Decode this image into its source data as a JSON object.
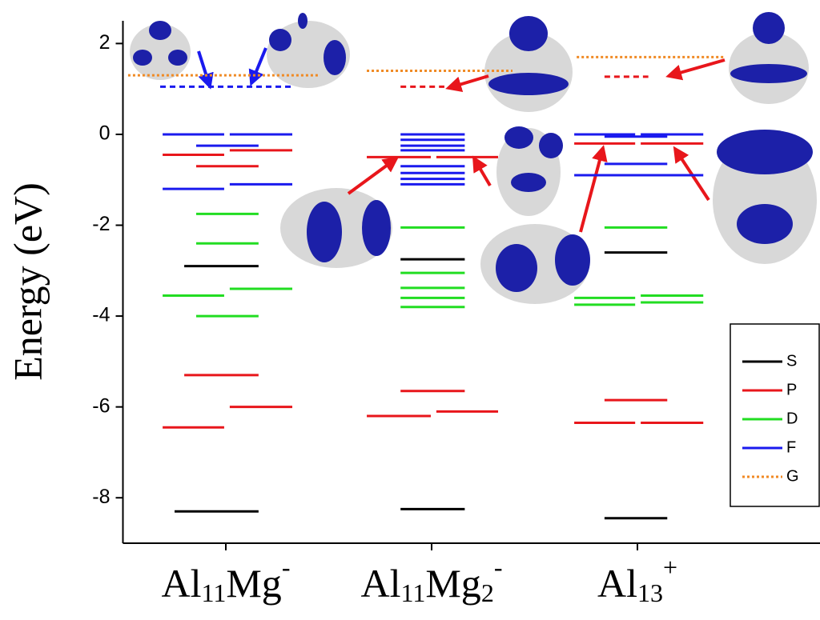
{
  "chart_data": {
    "type": "energy-levels",
    "y_label": "Energy (eV)",
    "ylim": [
      -9,
      2.5
    ],
    "yticks": [
      -8,
      -6,
      -4,
      -2,
      0,
      2
    ],
    "xlim": [
      0,
      3.4
    ],
    "xticks": [
      {
        "value": 0.5,
        "label": [
          {
            "text": "Al"
          },
          {
            "text": "11",
            "shift": "sub"
          },
          {
            "text": "Mg"
          },
          {
            "text": "-",
            "shift": "super"
          }
        ]
      },
      {
        "value": 1.5,
        "label": [
          {
            "text": "Al"
          },
          {
            "text": "11",
            "shift": "sub"
          },
          {
            "text": "Mg"
          },
          {
            "text": "2",
            "shift": "sub"
          },
          {
            "text": "-",
            "shift": "super"
          }
        ]
      },
      {
        "value": 2.5,
        "label": [
          {
            "text": "Al"
          },
          {
            "text": "13",
            "shift": "sub"
          },
          {
            "text": "+",
            "shift": "super"
          }
        ]
      }
    ],
    "legend_position": "lower right",
    "series": [
      {
        "name": "S",
        "color": "#000000",
        "style": "solid",
        "values": [
          -8.3,
          -2.9,
          -8.25,
          -2.75,
          -8.45,
          -2.6
        ],
        "x": [
          0.251,
          0.298,
          1.349,
          1.349,
          2.34,
          2.34
        ],
        "x2": [
          0.659,
          0.659,
          1.661,
          1.661,
          2.645,
          2.645
        ],
        "dashed": [
          false,
          false,
          false,
          false,
          false,
          false
        ]
      },
      {
        "name": "P",
        "color": "#e8161b",
        "style": "solid",
        "values": [
          -6.45,
          -6.0,
          -5.3,
          -0.45,
          -0.35,
          -0.7,
          -6.2,
          -6.1,
          -5.65,
          -0.5,
          -0.5,
          1.05,
          -6.35,
          -6.35,
          -5.85,
          -0.2,
          -0.2,
          1.27
        ],
        "x": [
          0.193,
          0.519,
          0.298,
          0.193,
          0.519,
          0.356,
          1.185,
          1.523,
          1.349,
          1.185,
          1.523,
          1.349,
          2.193,
          2.516,
          2.34,
          2.193,
          2.516,
          2.34
        ],
        "x2": [
          0.492,
          0.823,
          0.659,
          0.492,
          0.823,
          0.659,
          1.496,
          1.823,
          1.661,
          1.496,
          1.823,
          1.562,
          2.489,
          2.82,
          2.645,
          2.489,
          2.82,
          2.553
        ],
        "dashed": [
          false,
          false,
          false,
          false,
          false,
          false,
          false,
          false,
          false,
          false,
          false,
          true,
          false,
          false,
          false,
          false,
          false,
          true
        ]
      },
      {
        "name": "D",
        "color": "#22dd22",
        "style": "solid",
        "values": [
          -3.55,
          -3.4,
          -4.0,
          -2.4,
          -1.75,
          -2.05,
          -3.05,
          -3.38,
          -3.6,
          -3.8,
          -2.05,
          -3.6,
          -3.75,
          -3.55,
          -3.7
        ],
        "x": [
          0.193,
          0.519,
          0.356,
          0.356,
          0.356,
          1.349,
          1.349,
          1.349,
          1.349,
          1.349,
          2.34,
          2.193,
          2.193,
          2.516,
          2.516
        ],
        "x2": [
          0.492,
          0.823,
          0.659,
          0.659,
          0.659,
          1.661,
          1.661,
          1.661,
          1.661,
          1.661,
          2.645,
          2.489,
          2.489,
          2.82,
          2.82
        ],
        "dashed": [
          false,
          false,
          false,
          false,
          false,
          false,
          false,
          false,
          false,
          false,
          false,
          false,
          false,
          false,
          false
        ]
      },
      {
        "name": "F",
        "color": "#1a1aee",
        "style": "solid",
        "values": [
          0,
          0,
          -0.25,
          -1.2,
          -1.1,
          1.05,
          0,
          -0.12,
          -0.25,
          -0.35,
          -0.7,
          -0.85,
          -0.98,
          -1.1,
          0,
          0,
          -0.05,
          -0.65,
          -0.9
        ],
        "x": [
          0.193,
          0.519,
          0.356,
          0.193,
          0.519,
          0.181,
          1.349,
          1.349,
          1.349,
          1.349,
          1.349,
          1.349,
          1.349,
          1.349,
          2.193,
          2.516,
          2.34,
          2.34,
          2.193
        ],
        "x2": [
          0.492,
          0.823,
          0.659,
          0.492,
          0.823,
          0.823,
          1.661,
          1.661,
          1.661,
          1.661,
          1.661,
          1.661,
          1.661,
          1.661,
          2.489,
          2.82,
          2.645,
          2.645,
          2.82
        ],
        "dashed": [
          false,
          false,
          false,
          false,
          false,
          true,
          false,
          false,
          false,
          false,
          false,
          false,
          false,
          false,
          false,
          false,
          false,
          false,
          false
        ]
      },
      {
        "name": "G",
        "color": "#f08a24",
        "style": "dotted",
        "values": [
          1.3,
          1.4,
          1.7
        ],
        "x": [
          0.025,
          1.185,
          2.205
        ],
        "x2": [
          0.959,
          1.893,
          2.924
        ],
        "dashed": [
          true,
          true,
          true
        ]
      }
    ]
  }
}
